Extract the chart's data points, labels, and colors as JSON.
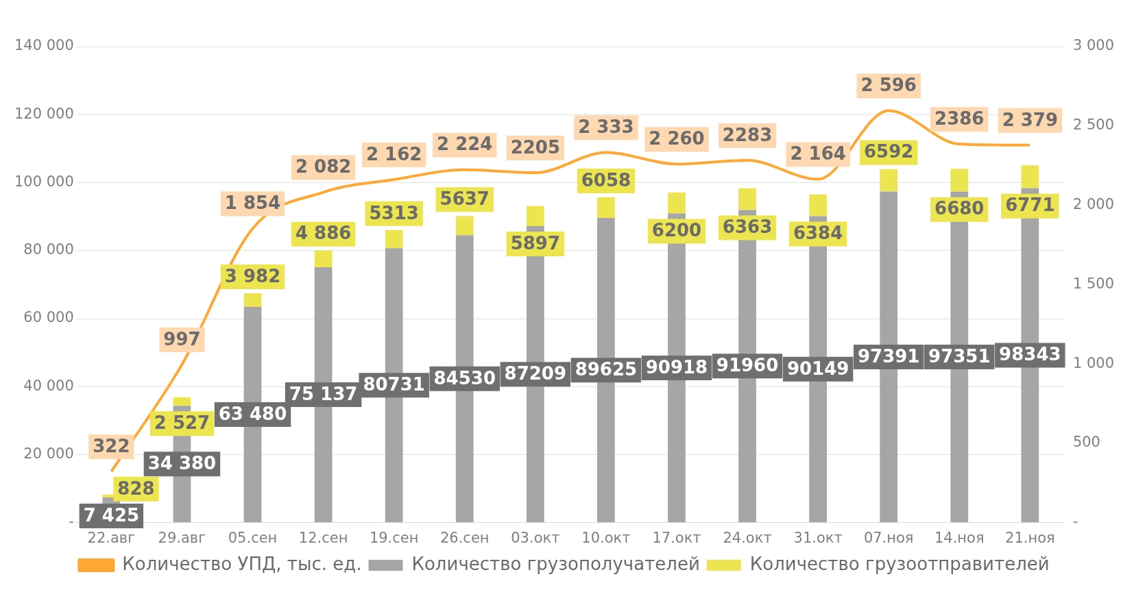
{
  "chart_data": {
    "type": "bar",
    "stacked": true,
    "categories": [
      "22.авг",
      "29.авг",
      "05.сен",
      "12.сен",
      "19.сен",
      "26.сен",
      "03.окт",
      "10.окт",
      "17.окт",
      "24.окт",
      "31.окт",
      "07.ноя",
      "14.ноя",
      "21.ноя"
    ],
    "series": [
      {
        "name": "Количество грузополучателей",
        "color": "#a6a6a6",
        "values": [
          7425,
          34380,
          63480,
          75137,
          80731,
          84530,
          87209,
          89625,
          90918,
          91960,
          90149,
          97391,
          97351,
          98343
        ],
        "value_labels": [
          "7 425",
          "34 380",
          "63 480",
          "75 137",
          "80731",
          "84530",
          "87209",
          "89625",
          "90918",
          "91960",
          "90149",
          "97391",
          "97351",
          "98343"
        ]
      },
      {
        "name": "Количество грузоотправителей",
        "color": "#ede54f",
        "values": [
          828,
          2527,
          3982,
          4886,
          5313,
          5637,
          5897,
          6058,
          6200,
          6363,
          6384,
          6592,
          6680,
          6771
        ],
        "value_labels": [
          "828",
          "2 527",
          "3 982",
          "4 886",
          "5313",
          "5637",
          "5897",
          "6058",
          "6200",
          "6363",
          "6384",
          "6592",
          "6680",
          "6771"
        ]
      },
      {
        "name": "Количество УПД, тыс. ед.",
        "type": "line",
        "axis": "y2",
        "color": "#ffa733",
        "values": [
          322,
          997,
          1854,
          2082,
          2162,
          2224,
          2205,
          2333,
          2260,
          2283,
          2164,
          2596,
          2386,
          2379
        ],
        "value_labels": [
          "322",
          "997",
          "1 854",
          "2 082",
          "2 162",
          "2 224",
          "2205",
          "2 333",
          "2 260",
          "2283",
          "2 164",
          "2 596",
          "2386",
          "2 379"
        ]
      }
    ],
    "ylim": [
      0,
      140000
    ],
    "yticks": [
      {
        "value": 0,
        "label": "-"
      },
      {
        "value": 20000,
        "label": "20 000"
      },
      {
        "value": 40000,
        "label": "40 000"
      },
      {
        "value": 60000,
        "label": "60 000"
      },
      {
        "value": 80000,
        "label": "80 000"
      },
      {
        "value": 100000,
        "label": "100 000"
      },
      {
        "value": 120000,
        "label": "120 000"
      },
      {
        "value": 140000,
        "label": "140 000"
      }
    ],
    "y2lim": [
      0,
      3000
    ],
    "y2ticks": [
      {
        "value": 0,
        "label": "-"
      },
      {
        "value": 500,
        "label": "500"
      },
      {
        "value": 1000,
        "label": "1 000"
      },
      {
        "value": 1500,
        "label": "1 500"
      },
      {
        "value": 2000,
        "label": "2 000"
      },
      {
        "value": 2500,
        "label": "2 500"
      },
      {
        "value": 3000,
        "label": "3 000"
      }
    ],
    "grid": "y",
    "legend": "bottom",
    "marker": "none"
  }
}
